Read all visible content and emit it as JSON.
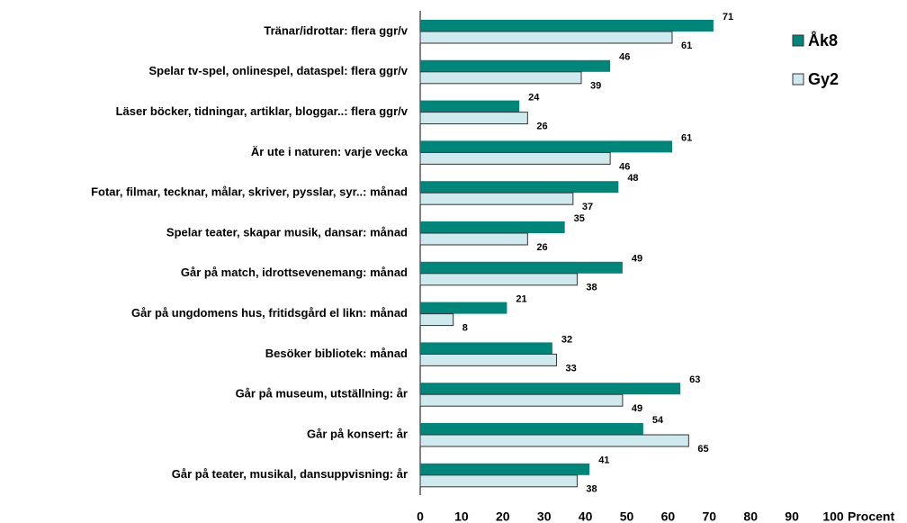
{
  "chart_data": {
    "type": "barh",
    "categories": [
      "Tränar/idrottar: flera ggr/v",
      "Spelar tv-spel, onlinespel, dataspel: flera ggr/v",
      "Läser böcker, tidningar, artiklar, bloggar..: flera ggr/v",
      "Är ute i naturen: varje vecka",
      "Fotar, filmar, tecknar, målar, skriver, pysslar, syr..: månad",
      "Spelar teater, skapar musik, dansar: månad",
      "Går på match, idrottsevenemang: månad",
      "Går på ungdomens hus, fritidsgård el likn: månad",
      "Besöker bibliotek: månad",
      "Går på museum, utställning: år",
      "Går på konsert: år",
      "Går på teater, musikal, dansuppvisning: år"
    ],
    "series": [
      {
        "name": "Åk8",
        "color": "#00857a",
        "values": [
          71,
          46,
          24,
          61,
          48,
          35,
          49,
          21,
          32,
          63,
          54,
          41
        ]
      },
      {
        "name": "Gy2",
        "color": "#cfeaee",
        "values": [
          61,
          39,
          26,
          46,
          37,
          26,
          38,
          8,
          33,
          49,
          65,
          38
        ]
      }
    ],
    "xlim": [
      0,
      100
    ],
    "xticks": [
      0,
      10,
      20,
      30,
      40,
      50,
      60,
      70,
      80,
      90,
      100
    ],
    "xlabel": "Procent",
    "legend": "upper right"
  }
}
